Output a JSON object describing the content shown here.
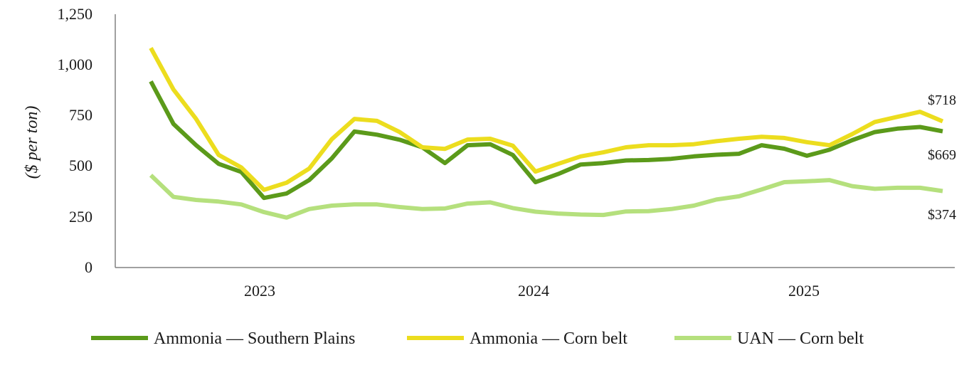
{
  "chart_data": {
    "type": "line",
    "ylabel": "($ per ton)",
    "xlabel": "",
    "ylim": [
      0,
      1250
    ],
    "y_ticks": [
      0,
      250,
      500,
      750,
      1000,
      1250
    ],
    "y_tick_labels": [
      "0",
      "250",
      "500",
      "750",
      "1,000",
      "1,250"
    ],
    "x_tick_labels": [
      "2023",
      "2024",
      "2025"
    ],
    "legend_position": "bottom",
    "grid": false,
    "series": [
      {
        "name": "Ammonia — Southern Plains",
        "color": "#5b9a1a",
        "end_label": "$669",
        "values": [
          915,
          705,
          600,
          508,
          468,
          340,
          362,
          428,
          535,
          668,
          652,
          627,
          590,
          512,
          600,
          605,
          552,
          418,
          458,
          505,
          512,
          525,
          527,
          533,
          545,
          553,
          558,
          600,
          583,
          548,
          578,
          625,
          665,
          682,
          690,
          669
        ]
      },
      {
        "name": "Ammonia — Corn belt",
        "color": "#ecdd1e",
        "end_label": "$718",
        "values": [
          1080,
          875,
          730,
          552,
          490,
          380,
          415,
          485,
          630,
          730,
          720,
          665,
          590,
          582,
          628,
          632,
          598,
          470,
          508,
          545,
          565,
          590,
          600,
          600,
          605,
          620,
          632,
          642,
          636,
          615,
          600,
          655,
          715,
          740,
          765,
          718
        ]
      },
      {
        "name": "UAN — Corn belt",
        "color": "#b5e07d",
        "end_label": "$374",
        "values": [
          452,
          345,
          330,
          322,
          308,
          270,
          243,
          285,
          302,
          308,
          308,
          295,
          285,
          288,
          312,
          318,
          290,
          272,
          263,
          258,
          256,
          273,
          275,
          285,
          302,
          332,
          348,
          382,
          418,
          422,
          428,
          398,
          385,
          390,
          390,
          374
        ]
      }
    ]
  }
}
